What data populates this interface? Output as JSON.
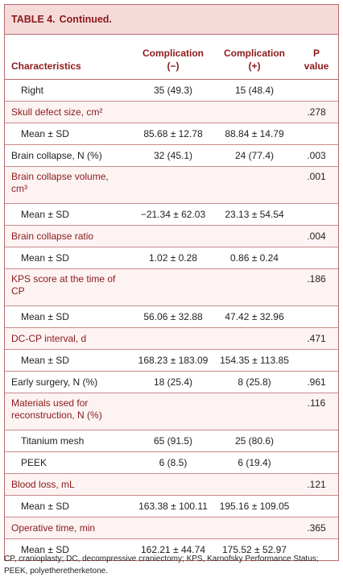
{
  "title": {
    "label": "TABLE 4.",
    "text": "Continued."
  },
  "table": {
    "header": [
      "Characteristics",
      "Complication (−)",
      "Complication (+)",
      "P value"
    ],
    "rows": [
      {
        "label": "Right",
        "neg": "35 (49.3)",
        "pos": "15 (48.4)"
      },
      {
        "label": "Skull defect size, cm²",
        "p": ".278"
      },
      {
        "label": "Mean ± SD",
        "neg": "85.68 ± 12.78",
        "pos": "88.84 ± 14.79"
      },
      {
        "label": "Brain collapse, N (%)",
        "neg": "32 (45.1)",
        "pos": "24 (77.4)",
        "p": ".003"
      },
      {
        "label": "Brain collapse volume, cm³",
        "p": ".001"
      },
      {
        "label": "Mean ± SD",
        "neg": "−21.34 ± 62.03",
        "pos": "23.13 ± 54.54"
      },
      {
        "label": "Brain collapse ratio",
        "p": ".004"
      },
      {
        "label": "Mean ± SD",
        "neg": "1.02 ± 0.28",
        "pos": "0.86 ± 0.24"
      },
      {
        "label": "KPS score at the time of CP",
        "p": ".186"
      },
      {
        "label": "Mean ± SD",
        "neg": "56.06 ± 32.88",
        "pos": "47.42 ± 32.96"
      },
      {
        "label": "DC-CP interval, d",
        "p": ".471"
      },
      {
        "label": "Mean ± SD",
        "neg": "168.23 ± 183.09",
        "pos": "154.35 ± 113.85"
      },
      {
        "label": "Early surgery, N (%)",
        "neg": "18 (25.4)",
        "pos": "8 (25.8)",
        "p": ".961"
      },
      {
        "label": "Materials used for reconstruction, N (%)",
        "p": ".116"
      },
      {
        "label": "Titanium mesh",
        "neg": "65 (91.5)",
        "pos": "25 (80.6)"
      },
      {
        "label": "PEEK",
        "neg": "6 (8.5)",
        "pos": "6 (19.4)"
      },
      {
        "label": "Blood loss, mL",
        "p": ".121"
      },
      {
        "label": "Mean ± SD",
        "neg": "163.38 ± 100.11",
        "pos": "195.16 ± 109.05"
      },
      {
        "label": "Operative time, min",
        "p": ".365"
      },
      {
        "label": "Mean ± SD",
        "neg": "162.21 ± 44.74",
        "pos": "175.52 ± 52.97"
      }
    ]
  },
  "footnote": "CP, cranioplasty; DC, decompressive craniectomy; KPS, Karnofsky Performance Status; PEEK, polyetheretherketone."
}
